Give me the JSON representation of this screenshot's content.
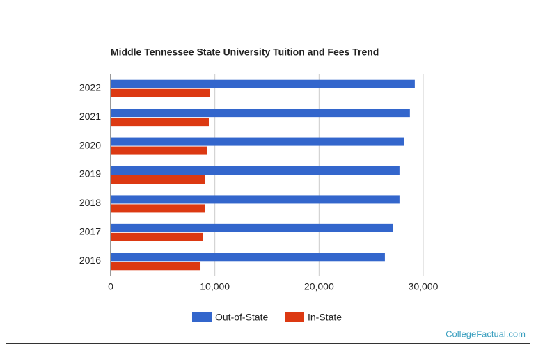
{
  "chart_data": {
    "type": "hbar",
    "title": "Middle Tennessee State University Tuition and Fees Trend",
    "categories": [
      "2022",
      "2021",
      "2020",
      "2019",
      "2018",
      "2017",
      "2016"
    ],
    "series": [
      {
        "name": "Out-of-State",
        "color": "#3366cc",
        "values": [
          29190,
          28720,
          28190,
          27720,
          27720,
          27120,
          26320
        ]
      },
      {
        "name": "In-State",
        "color": "#dc3912",
        "values": [
          9550,
          9420,
          9220,
          9080,
          9080,
          8880,
          8620
        ]
      }
    ],
    "xlim": [
      0,
      30000
    ],
    "xticks": [
      0,
      {
        "value": 10000,
        "label": "10,000"
      },
      {
        "value": 20000,
        "label": "20,000"
      },
      {
        "value": 30000,
        "label": "30,000"
      }
    ],
    "grid": true,
    "legend": "bottom"
  },
  "footer": "CollegeFactual.com"
}
